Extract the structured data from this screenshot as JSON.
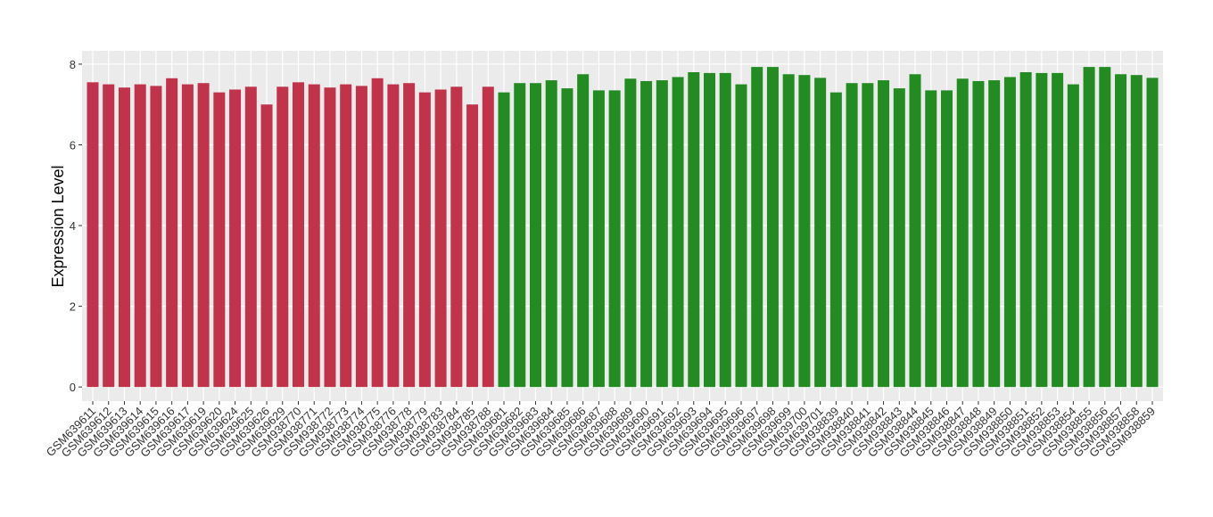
{
  "chart_data": {
    "type": "bar",
    "y_label": "Expression Level",
    "categories": [
      "GSM639611",
      "GSM639612",
      "GSM639613",
      "GSM639614",
      "GSM639615",
      "GSM639616",
      "GSM639617",
      "GSM639619",
      "GSM639620",
      "GSM639624",
      "GSM639625",
      "GSM639626",
      "GSM639629",
      "GSM938770",
      "GSM938771",
      "GSM938772",
      "GSM938773",
      "GSM938774",
      "GSM938775",
      "GSM938776",
      "GSM938778",
      "GSM938779",
      "GSM938783",
      "GSM938784",
      "GSM938785",
      "GSM938788",
      "GSM639681",
      "GSM639682",
      "GSM639683",
      "GSM639684",
      "GSM639685",
      "GSM639686",
      "GSM639687",
      "GSM639688",
      "GSM639689",
      "GSM639690",
      "GSM639691",
      "GSM639692",
      "GSM639693",
      "GSM639694",
      "GSM639695",
      "GSM639696",
      "GSM639697",
      "GSM639698",
      "GSM639699",
      "GSM639700",
      "GSM639701",
      "GSM938839",
      "GSM938840",
      "GSM938841",
      "GSM938842",
      "GSM938843",
      "GSM938844",
      "GSM938845",
      "GSM938846",
      "GSM938847",
      "GSM938848",
      "GSM938849",
      "GSM938850",
      "GSM938851",
      "GSM938852",
      "GSM938853",
      "GSM938854",
      "GSM938855",
      "GSM938856",
      "GSM938857",
      "GSM938858",
      "GSM938859"
    ],
    "series": [
      {
        "color": "#c0334a",
        "values": [
          7.55,
          7.5,
          7.42,
          7.5,
          7.46,
          7.65,
          7.5,
          7.53,
          7.3,
          7.37,
          7.44,
          7.0,
          7.44,
          7.55,
          7.5,
          7.42,
          7.5,
          7.46,
          7.65,
          7.5,
          7.53,
          7.3,
          7.37,
          7.44,
          7.0,
          7.44,
          null,
          null,
          null,
          null,
          null,
          null,
          null,
          null,
          null,
          null,
          null,
          null,
          null,
          null,
          null,
          null,
          null,
          null,
          null,
          null,
          null,
          null,
          null,
          null,
          null,
          null,
          null,
          null,
          null,
          null,
          null,
          null,
          null,
          null,
          null,
          null,
          null,
          null,
          null,
          null,
          null,
          null
        ]
      },
      {
        "color": "#228b22",
        "values": [
          null,
          null,
          null,
          null,
          null,
          null,
          null,
          null,
          null,
          null,
          null,
          null,
          null,
          null,
          null,
          null,
          null,
          null,
          null,
          null,
          null,
          null,
          null,
          null,
          null,
          null,
          7.3,
          7.53,
          7.53,
          7.6,
          7.4,
          7.75,
          7.35,
          7.35,
          7.64,
          7.58,
          7.6,
          7.68,
          7.8,
          7.78,
          7.78,
          7.5,
          7.93,
          7.93,
          7.75,
          7.73,
          7.66,
          7.3,
          7.53,
          7.53,
          7.6,
          7.4,
          7.75,
          7.35,
          7.35,
          7.64,
          7.58,
          7.6,
          7.68,
          7.8,
          7.78,
          7.78,
          7.5,
          7.93,
          7.93,
          7.75,
          7.73,
          7.66
        ]
      }
    ],
    "ylim": [
      -0.35,
      8.33
    ],
    "yticks": [
      0,
      2,
      4,
      6,
      8
    ],
    "grid": true
  }
}
